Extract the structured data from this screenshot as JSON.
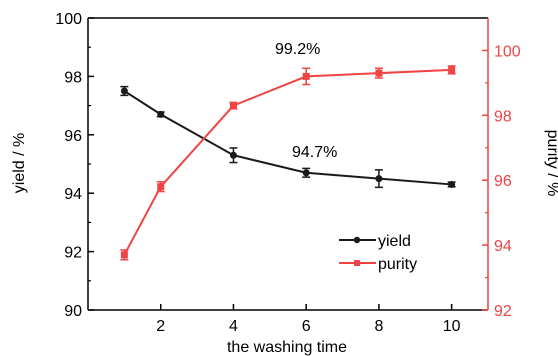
{
  "chart_data": {
    "type": "line",
    "x": [
      1,
      2,
      4,
      6,
      8,
      10
    ],
    "xlabel": "the washing time",
    "xticks": [
      "2",
      "4",
      "6",
      "8",
      "10"
    ],
    "xlim": [
      0,
      11
    ],
    "ylabel_left": "yield / %",
    "ylabel_right": "purity / %",
    "ylim_left": [
      90,
      100
    ],
    "ylim_right": [
      92,
      101
    ],
    "yticks_left": [
      "90",
      "92",
      "94",
      "96",
      "98",
      "100"
    ],
    "yticks_right": [
      "92",
      "94",
      "96",
      "98",
      "100"
    ],
    "series": [
      {
        "name": "yield",
        "axis": "left",
        "color": "#1a1a1a",
        "marker": "circle",
        "values": [
          97.5,
          96.7,
          95.3,
          94.7,
          94.5,
          94.3
        ],
        "errors": [
          0.15,
          0.08,
          0.25,
          0.15,
          0.3,
          0.08
        ]
      },
      {
        "name": "purity",
        "axis": "right",
        "color": "#ee4444",
        "marker": "square",
        "values": [
          93.7,
          95.8,
          98.3,
          99.2,
          99.3,
          99.4
        ],
        "errors": [
          0.15,
          0.15,
          0.1,
          0.25,
          0.15,
          0.12
        ]
      }
    ],
    "annotations": [
      "99.2%",
      "94.7%"
    ],
    "legend_position": "lower-right",
    "grid": false,
    "axis_colors": {
      "left": "#000000",
      "right": "#ee4444"
    }
  }
}
